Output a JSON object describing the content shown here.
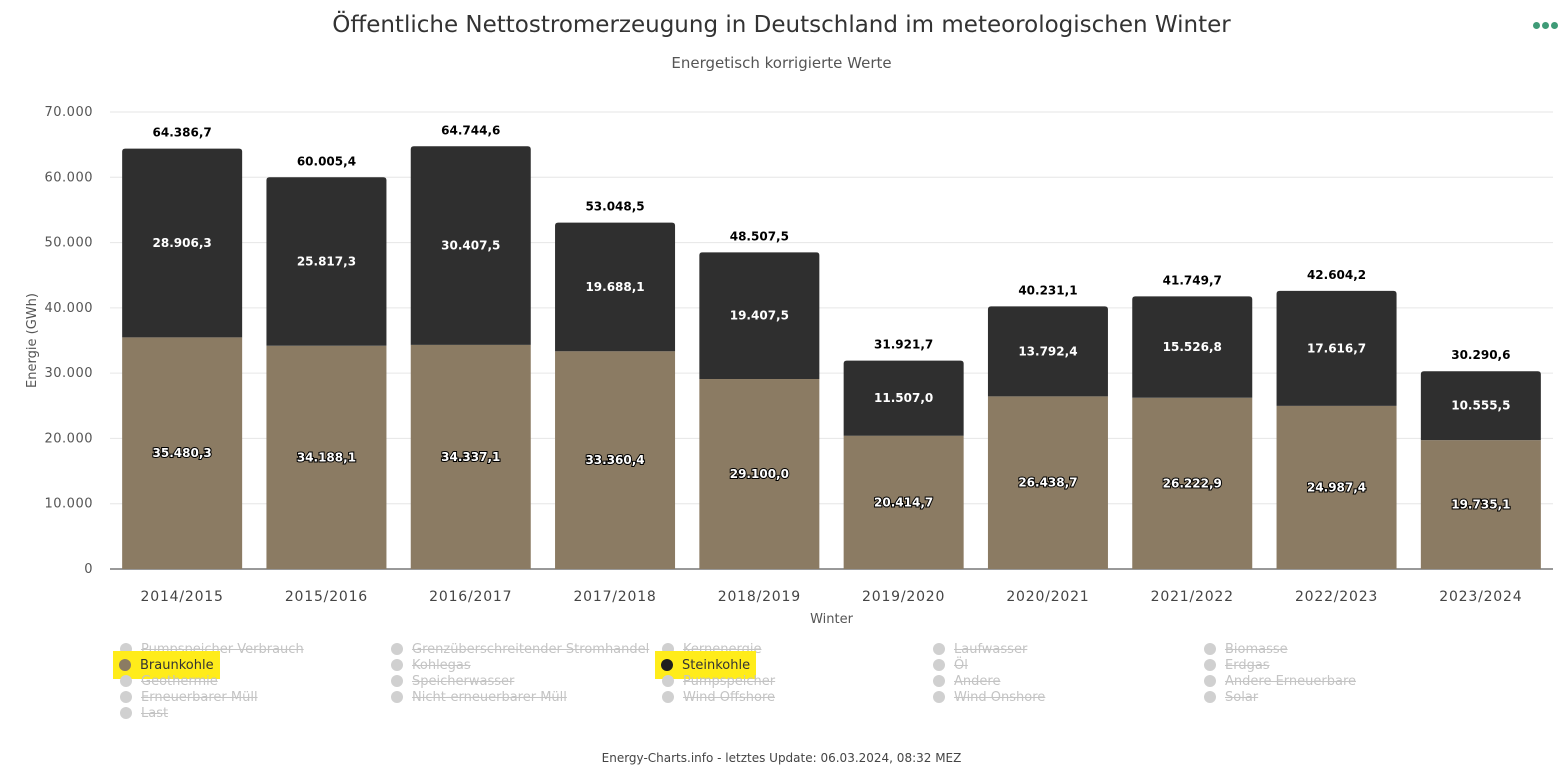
{
  "header": {
    "title": "Öffentliche Nettostromerzeugung in Deutschland im meteorologischen Winter",
    "subtitle": "Energetisch korrigierte Werte",
    "menu_icon": "ellipsis-icon"
  },
  "chart_data": {
    "type": "bar",
    "stacked": true,
    "categories": [
      "2014/2015",
      "2015/2016",
      "2016/2017",
      "2017/2018",
      "2018/2019",
      "2019/2020",
      "2020/2021",
      "2021/2022",
      "2022/2023",
      "2023/2024"
    ],
    "series": [
      {
        "name": "Braunkohle",
        "color": "#8b7b63",
        "values": [
          35480.3,
          34188.1,
          34337.1,
          33360.4,
          29100.0,
          20414.7,
          26438.7,
          26222.9,
          24987.4,
          19735.1
        ],
        "labels": [
          "35.480,3",
          "34.188,1",
          "34.337,1",
          "33.360,4",
          "29.100,0",
          "20.414,7",
          "26.438,7",
          "26.222,9",
          "24.987,4",
          "19.735,1"
        ]
      },
      {
        "name": "Steinkohle",
        "color": "#2f2f2f",
        "values": [
          28906.3,
          25817.3,
          30407.5,
          19688.1,
          19407.5,
          11507.0,
          13792.4,
          15526.8,
          17616.7,
          10555.5
        ],
        "labels": [
          "28.906,3",
          "25.817,3",
          "30.407,5",
          "19.688,1",
          "19.407,5",
          "11.507,0",
          "13.792,4",
          "15.526,8",
          "17.616,7",
          "10.555,5"
        ]
      }
    ],
    "totals": [
      64386.7,
      60005.4,
      64744.6,
      53048.5,
      48507.5,
      31921.7,
      40231.1,
      41749.7,
      42604.2,
      30290.6
    ],
    "total_labels": [
      "64.386,7",
      "60.005,4",
      "64.744,6",
      "53.048,5",
      "48.507,5",
      "31.921,7",
      "40.231,1",
      "41.749,7",
      "42.604,2",
      "30.290,6"
    ],
    "xlabel": "Winter",
    "ylabel": "Energie (GWh)",
    "ylim": [
      0,
      70000
    ],
    "yticks": [
      0,
      10000,
      20000,
      30000,
      40000,
      50000,
      60000,
      70000
    ],
    "ytick_labels": [
      "0",
      "10.000",
      "20.000",
      "30.000",
      "40.000",
      "50.000",
      "60.000",
      "70.000"
    ],
    "grid": true,
    "legend_position": "bottom"
  },
  "legend": {
    "items": [
      {
        "label": "Pumpspeicher Verbrauch",
        "active": false
      },
      {
        "label": "Grenzüberschreitender Stromhandel",
        "active": false
      },
      {
        "label": "Kernenergie",
        "active": false
      },
      {
        "label": "Laufwasser",
        "active": false
      },
      {
        "label": "Biomasse",
        "active": false
      },
      {
        "label": "Braunkohle",
        "active": true,
        "color": "#8b7b63"
      },
      {
        "label": "Kohlegas",
        "active": false
      },
      {
        "label": "Steinkohle",
        "active": true,
        "color": "#1f1f1f"
      },
      {
        "label": "Öl",
        "active": false
      },
      {
        "label": "Erdgas",
        "active": false
      },
      {
        "label": "Geothermie",
        "active": false
      },
      {
        "label": "Speicherwasser",
        "active": false
      },
      {
        "label": "Pumpspeicher",
        "active": false
      },
      {
        "label": "Andere",
        "active": false
      },
      {
        "label": "Andere Erneuerbare",
        "active": false
      },
      {
        "label": "Erneuerbarer Müll",
        "active": false
      },
      {
        "label": "Nicht-erneuerbarer Müll",
        "active": false
      },
      {
        "label": "Wind Offshore",
        "active": false
      },
      {
        "label": "Wind Onshore",
        "active": false
      },
      {
        "label": "Solar",
        "active": false
      },
      {
        "label": "Last",
        "active": false
      }
    ]
  },
  "footer": {
    "text": "Energy-Charts.info - letztes Update: 06.03.2024, 08:32 MEZ"
  }
}
